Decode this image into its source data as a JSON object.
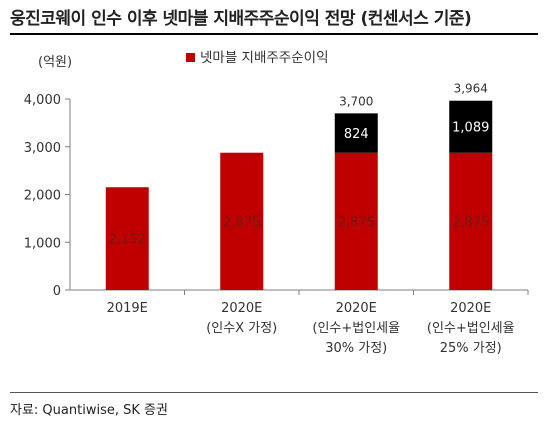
{
  "title": "웅진코웨이 인수 이후 넷마블 지배주주순이익 전망 (컨센서스 기준)",
  "source": "자료: Quantiwise, SK 증권",
  "colors": {
    "base": "#C00000",
    "increment": "#000000",
    "axis": "#7f7f7f"
  },
  "chart_data": {
    "type": "bar",
    "stacked": true,
    "unit_label": "(억원)",
    "categories": [
      [
        "2019E"
      ],
      [
        "2020E",
        "(인수X 가정)"
      ],
      [
        "2020E",
        "(인수+법인세율",
        "30% 가정)"
      ],
      [
        "2020E",
        "(인수+법인세율",
        "25% 가정)"
      ]
    ],
    "legend": [
      "넷마블 지배주주순이익"
    ],
    "series": [
      {
        "name": "넷마블 지배주주순이익",
        "values": [
          2152,
          2875,
          2875,
          2875
        ],
        "labels": [
          "2,152",
          "2,875",
          "2,875",
          "2,875"
        ]
      },
      {
        "values": [
          0,
          0,
          824,
          1089
        ],
        "labels": [
          "",
          "",
          "824",
          "1,089"
        ]
      }
    ],
    "totals": [
      "",
      "",
      "3,700",
      "3,964"
    ],
    "ylim": [
      0,
      4000
    ],
    "yticks": [
      0,
      1000,
      2000,
      3000,
      4000
    ],
    "ytick_labels": [
      "0",
      "1,000",
      "2,000",
      "3,000",
      "4,000"
    ],
    "grid": false,
    "legend_position": "top-center"
  }
}
